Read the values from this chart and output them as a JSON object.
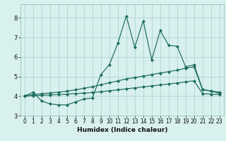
{
  "title": "",
  "xlabel": "Humidex (Indice chaleur)",
  "background_color": "#d8f0ee",
  "grid_color": "#a8d0cc",
  "line_color": "#1a6b5e",
  "xlim": [
    -0.5,
    23.5
  ],
  "ylim": [
    3.0,
    8.7
  ],
  "xticks": [
    0,
    1,
    2,
    3,
    4,
    5,
    6,
    7,
    8,
    9,
    10,
    11,
    12,
    13,
    14,
    15,
    16,
    17,
    18,
    19,
    20,
    21,
    22,
    23
  ],
  "yticks": [
    3,
    4,
    5,
    6,
    7,
    8
  ],
  "series1_x": [
    0,
    1,
    2,
    3,
    4,
    5,
    6,
    7,
    8,
    9,
    10,
    11,
    12,
    13,
    14,
    15,
    16,
    17,
    18,
    19,
    20,
    21,
    22,
    23
  ],
  "series1_y": [
    4.0,
    4.2,
    3.75,
    3.6,
    3.55,
    3.55,
    3.7,
    3.85,
    3.9,
    5.1,
    5.6,
    6.7,
    8.1,
    6.5,
    7.85,
    5.85,
    7.35,
    6.6,
    6.55,
    5.5,
    5.6,
    4.35,
    4.25,
    4.15
  ],
  "series2_x": [
    0,
    1,
    2,
    3,
    4,
    5,
    6,
    7,
    8,
    9,
    10,
    11,
    12,
    13,
    14,
    15,
    16,
    17,
    18,
    19,
    20,
    21,
    22,
    23
  ],
  "series2_y": [
    4.0,
    4.08,
    4.12,
    4.16,
    4.2,
    4.25,
    4.32,
    4.4,
    4.48,
    4.58,
    4.68,
    4.78,
    4.88,
    4.95,
    5.02,
    5.1,
    5.18,
    5.25,
    5.33,
    5.42,
    5.5,
    4.32,
    4.26,
    4.2
  ],
  "series3_x": [
    0,
    1,
    2,
    3,
    4,
    5,
    6,
    7,
    8,
    9,
    10,
    11,
    12,
    13,
    14,
    15,
    16,
    17,
    18,
    19,
    20,
    21,
    22,
    23
  ],
  "series3_y": [
    4.0,
    4.02,
    4.04,
    4.06,
    4.08,
    4.1,
    4.13,
    4.15,
    4.18,
    4.22,
    4.27,
    4.32,
    4.37,
    4.42,
    4.47,
    4.52,
    4.57,
    4.62,
    4.67,
    4.73,
    4.78,
    4.13,
    4.1,
    4.08
  ],
  "tick_fontsize": 5.5,
  "xlabel_fontsize": 6.5
}
